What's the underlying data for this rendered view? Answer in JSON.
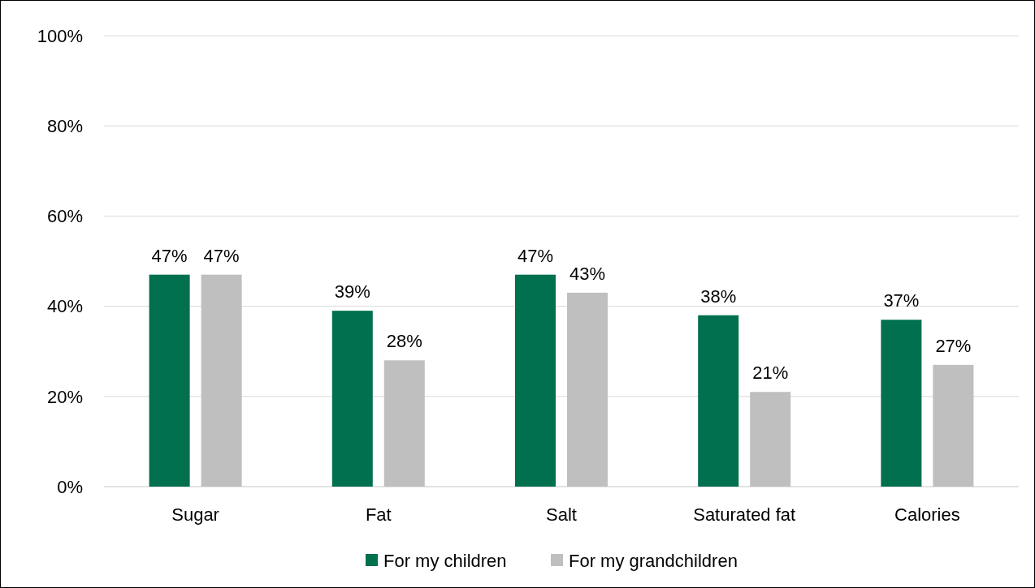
{
  "chart_data": {
    "type": "bar",
    "categories": [
      "Sugar",
      "Fat",
      "Salt",
      "Saturated fat",
      "Calories"
    ],
    "series": [
      {
        "name": "For my children",
        "color": "#00704f",
        "values": [
          47,
          39,
          47,
          38,
          37
        ],
        "value_labels": [
          "47%",
          "39%",
          "47%",
          "38%",
          "37%"
        ]
      },
      {
        "name": "For my grandchildren",
        "color": "#bfbfbf",
        "values": [
          47,
          28,
          43,
          21,
          27
        ],
        "value_labels": [
          "47%",
          "28%",
          "43%",
          "21%",
          "27%"
        ]
      }
    ],
    "ylim": [
      0,
      100
    ],
    "yticks": [
      {
        "value": 0,
        "label": "0%"
      },
      {
        "value": 20,
        "label": "20%"
      },
      {
        "value": 40,
        "label": "40%"
      },
      {
        "value": 60,
        "label": "60%"
      },
      {
        "value": 80,
        "label": "80%"
      },
      {
        "value": 100,
        "label": "100%"
      }
    ],
    "grid": "y",
    "legend": "bottom"
  }
}
